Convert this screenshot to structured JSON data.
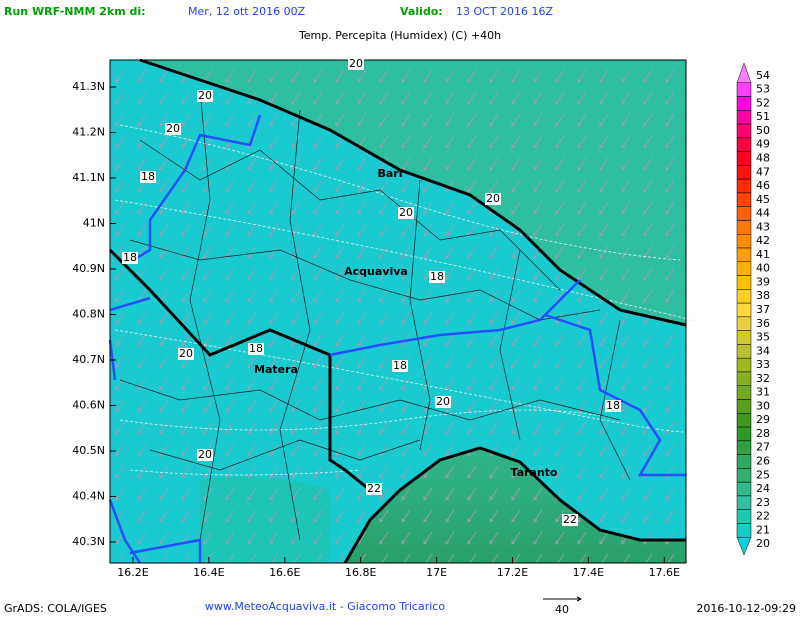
{
  "header": {
    "run_label": "Run WRF-NMM 2km di:",
    "run_date": "Mer, 12 ott 2016 00Z",
    "valid_label": "Valido:",
    "valid_date": "13 OCT 2016 16Z"
  },
  "title": "Temp. Percepita (Humidex) (C) +40h",
  "map": {
    "lat_labels": [
      "41.3N",
      "41.2N",
      "41.1N",
      "41N",
      "40.9N",
      "40.8N",
      "40.7N",
      "40.6N",
      "40.5N",
      "40.4N",
      "40.3N"
    ],
    "lon_labels": [
      "16.2E",
      "16.4E",
      "16.6E",
      "16.8E",
      "17E",
      "17.2E",
      "17.4E",
      "17.6E"
    ],
    "cities": [
      "Bari",
      "Acquaviva",
      "Matera",
      "Taranto"
    ],
    "contour_labels": [
      "20",
      "20",
      "20",
      "18",
      "20",
      "20",
      "18",
      "18",
      "18",
      "20",
      "18",
      "20",
      "18",
      "20",
      "22",
      "22"
    ]
  },
  "colorbar": {
    "levels": [
      "54",
      "53",
      "52",
      "51",
      "50",
      "49",
      "48",
      "47",
      "46",
      "45",
      "44",
      "43",
      "42",
      "41",
      "40",
      "39",
      "38",
      "37",
      "36",
      "35",
      "34",
      "33",
      "32",
      "31",
      "30",
      "29",
      "28",
      "27",
      "26",
      "25",
      "24",
      "23",
      "22",
      "21",
      "20"
    ],
    "colors": [
      "#ff80ff",
      "#ff40ff",
      "#ff00e0",
      "#ff00a0",
      "#ff0070",
      "#ff0040",
      "#ff0020",
      "#ff1010",
      "#ff2a00",
      "#ff4500",
      "#ff6000",
      "#ff7800",
      "#ff8c00",
      "#ffa000",
      "#ffb000",
      "#ffc000",
      "#ffd020",
      "#ffd840",
      "#e8d040",
      "#d0c830",
      "#b8c030",
      "#a0b820",
      "#88b020",
      "#70a820",
      "#58a020",
      "#409820",
      "#309828",
      "#30a040",
      "#30a860",
      "#30b070",
      "#30b888",
      "#30c0a0",
      "#20c8b0",
      "#18ccc8",
      "#10d0e0"
    ]
  },
  "footer": {
    "software": "GrADS: COLA/IGES",
    "credit": "www.MeteoAcquaviva.it - Giacomo Tricarico",
    "vector_scale": "40",
    "timestamp": "2016-10-12-09:29"
  }
}
